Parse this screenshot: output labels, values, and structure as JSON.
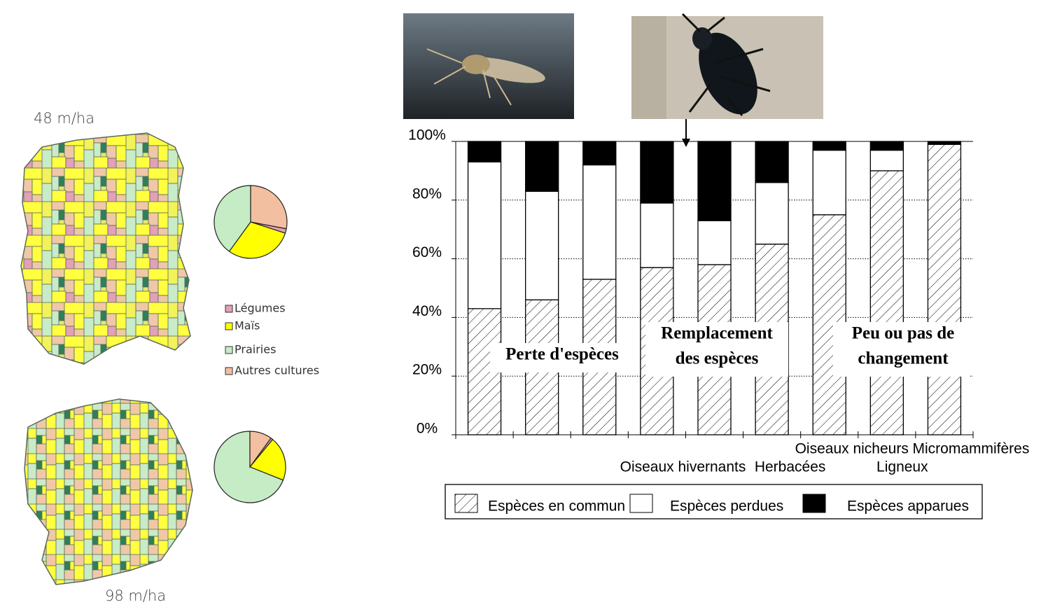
{
  "chart_data": [
    {
      "type": "pie",
      "title": "48 m/ha",
      "categories": [
        "Légumes",
        "Maïs",
        "Prairies",
        "Autres cultures"
      ],
      "values": [
        2,
        30,
        40,
        28
      ],
      "colors": [
        "#e3a0b6",
        "#ffff00",
        "#c6ecc6",
        "#f2bfa0"
      ],
      "legend": true
    },
    {
      "type": "pie",
      "title": "98 m/ha",
      "categories": [
        "Légumes",
        "Maïs",
        "Prairies",
        "Autres cultures"
      ],
      "values": [
        1,
        20,
        69,
        10
      ],
      "colors": [
        "#e3a0b6",
        "#ffff00",
        "#c6ecc6",
        "#f2bfa0"
      ],
      "legend": false
    },
    {
      "type": "bar",
      "stacked": true,
      "categories": [
        null,
        null,
        null,
        null,
        "Oiseaux hivernants",
        "Herbacées",
        "Oiseaux nicheurs",
        "Ligneux",
        "Micromammifères"
      ],
      "series": [
        {
          "name": "Espèces en commun",
          "color": "#ffffff",
          "hatch": true,
          "values": [
            43,
            46,
            53,
            57,
            58,
            65,
            75,
            90,
            99
          ]
        },
        {
          "name": "Espèces perdues",
          "color": "#ffffff",
          "hatch": false,
          "values": [
            50,
            37,
            39,
            22,
            15,
            21,
            22,
            7,
            0
          ]
        },
        {
          "name": "Espèces apparues",
          "color": "#000000",
          "hatch": false,
          "values": [
            7,
            17,
            8,
            21,
            27,
            14,
            3,
            3,
            1
          ]
        }
      ],
      "ylim": [
        0,
        100
      ],
      "yticks": [
        {
          "value": 0,
          "label": "0%"
        },
        {
          "value": 20,
          "label": "20%"
        },
        {
          "value": 40,
          "label": "40%"
        },
        {
          "value": 60,
          "label": "60%"
        },
        {
          "value": 80,
          "label": "80%"
        },
        {
          "value": 100,
          "label": "100%"
        }
      ],
      "grid": true,
      "annotations": [
        {
          "lines": [
            "Perte d'espèces"
          ]
        },
        {
          "lines": [
            "Remplacement",
            "des espèces"
          ]
        },
        {
          "lines": [
            "Peu ou pas de",
            "changement"
          ]
        }
      ]
    }
  ]
}
